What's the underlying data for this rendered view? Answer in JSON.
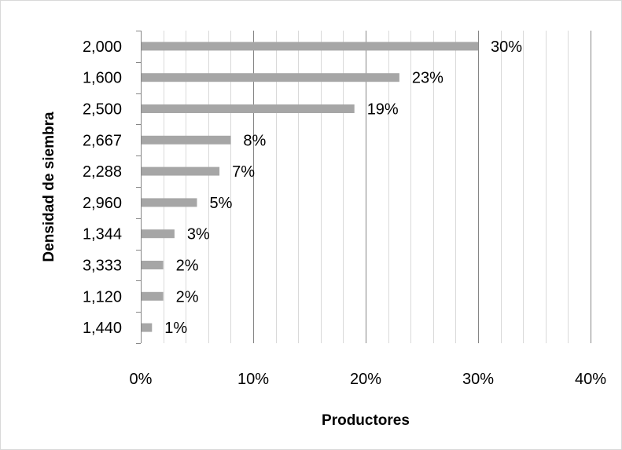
{
  "chart_data": {
    "type": "bar",
    "orientation": "horizontal",
    "title": "",
    "xlabel": "Productores",
    "ylabel": "Densidad de siembra",
    "categories": [
      "2,000",
      "1,600",
      "2,500",
      "2,667",
      "2,288",
      "2,960",
      "1,344",
      "3,333",
      "1,120",
      "1,440"
    ],
    "values": [
      30,
      23,
      19,
      8,
      7,
      5,
      3,
      2,
      2,
      1
    ],
    "data_labels": [
      "30%",
      "23%",
      "19%",
      "8%",
      "7%",
      "5%",
      "3%",
      "2%",
      "2%",
      "1%"
    ],
    "xlim": [
      0,
      40
    ],
    "x_ticks": [
      0,
      10,
      20,
      30,
      40
    ],
    "x_tick_labels": [
      "0%",
      "10%",
      "20%",
      "30%",
      "40%"
    ],
    "minor_gridline_step": 2,
    "grid": true,
    "legend": "none",
    "bar_color": "#a6a6a6",
    "major_grid_color": "#868686",
    "minor_grid_color": "#d9d9d9"
  }
}
